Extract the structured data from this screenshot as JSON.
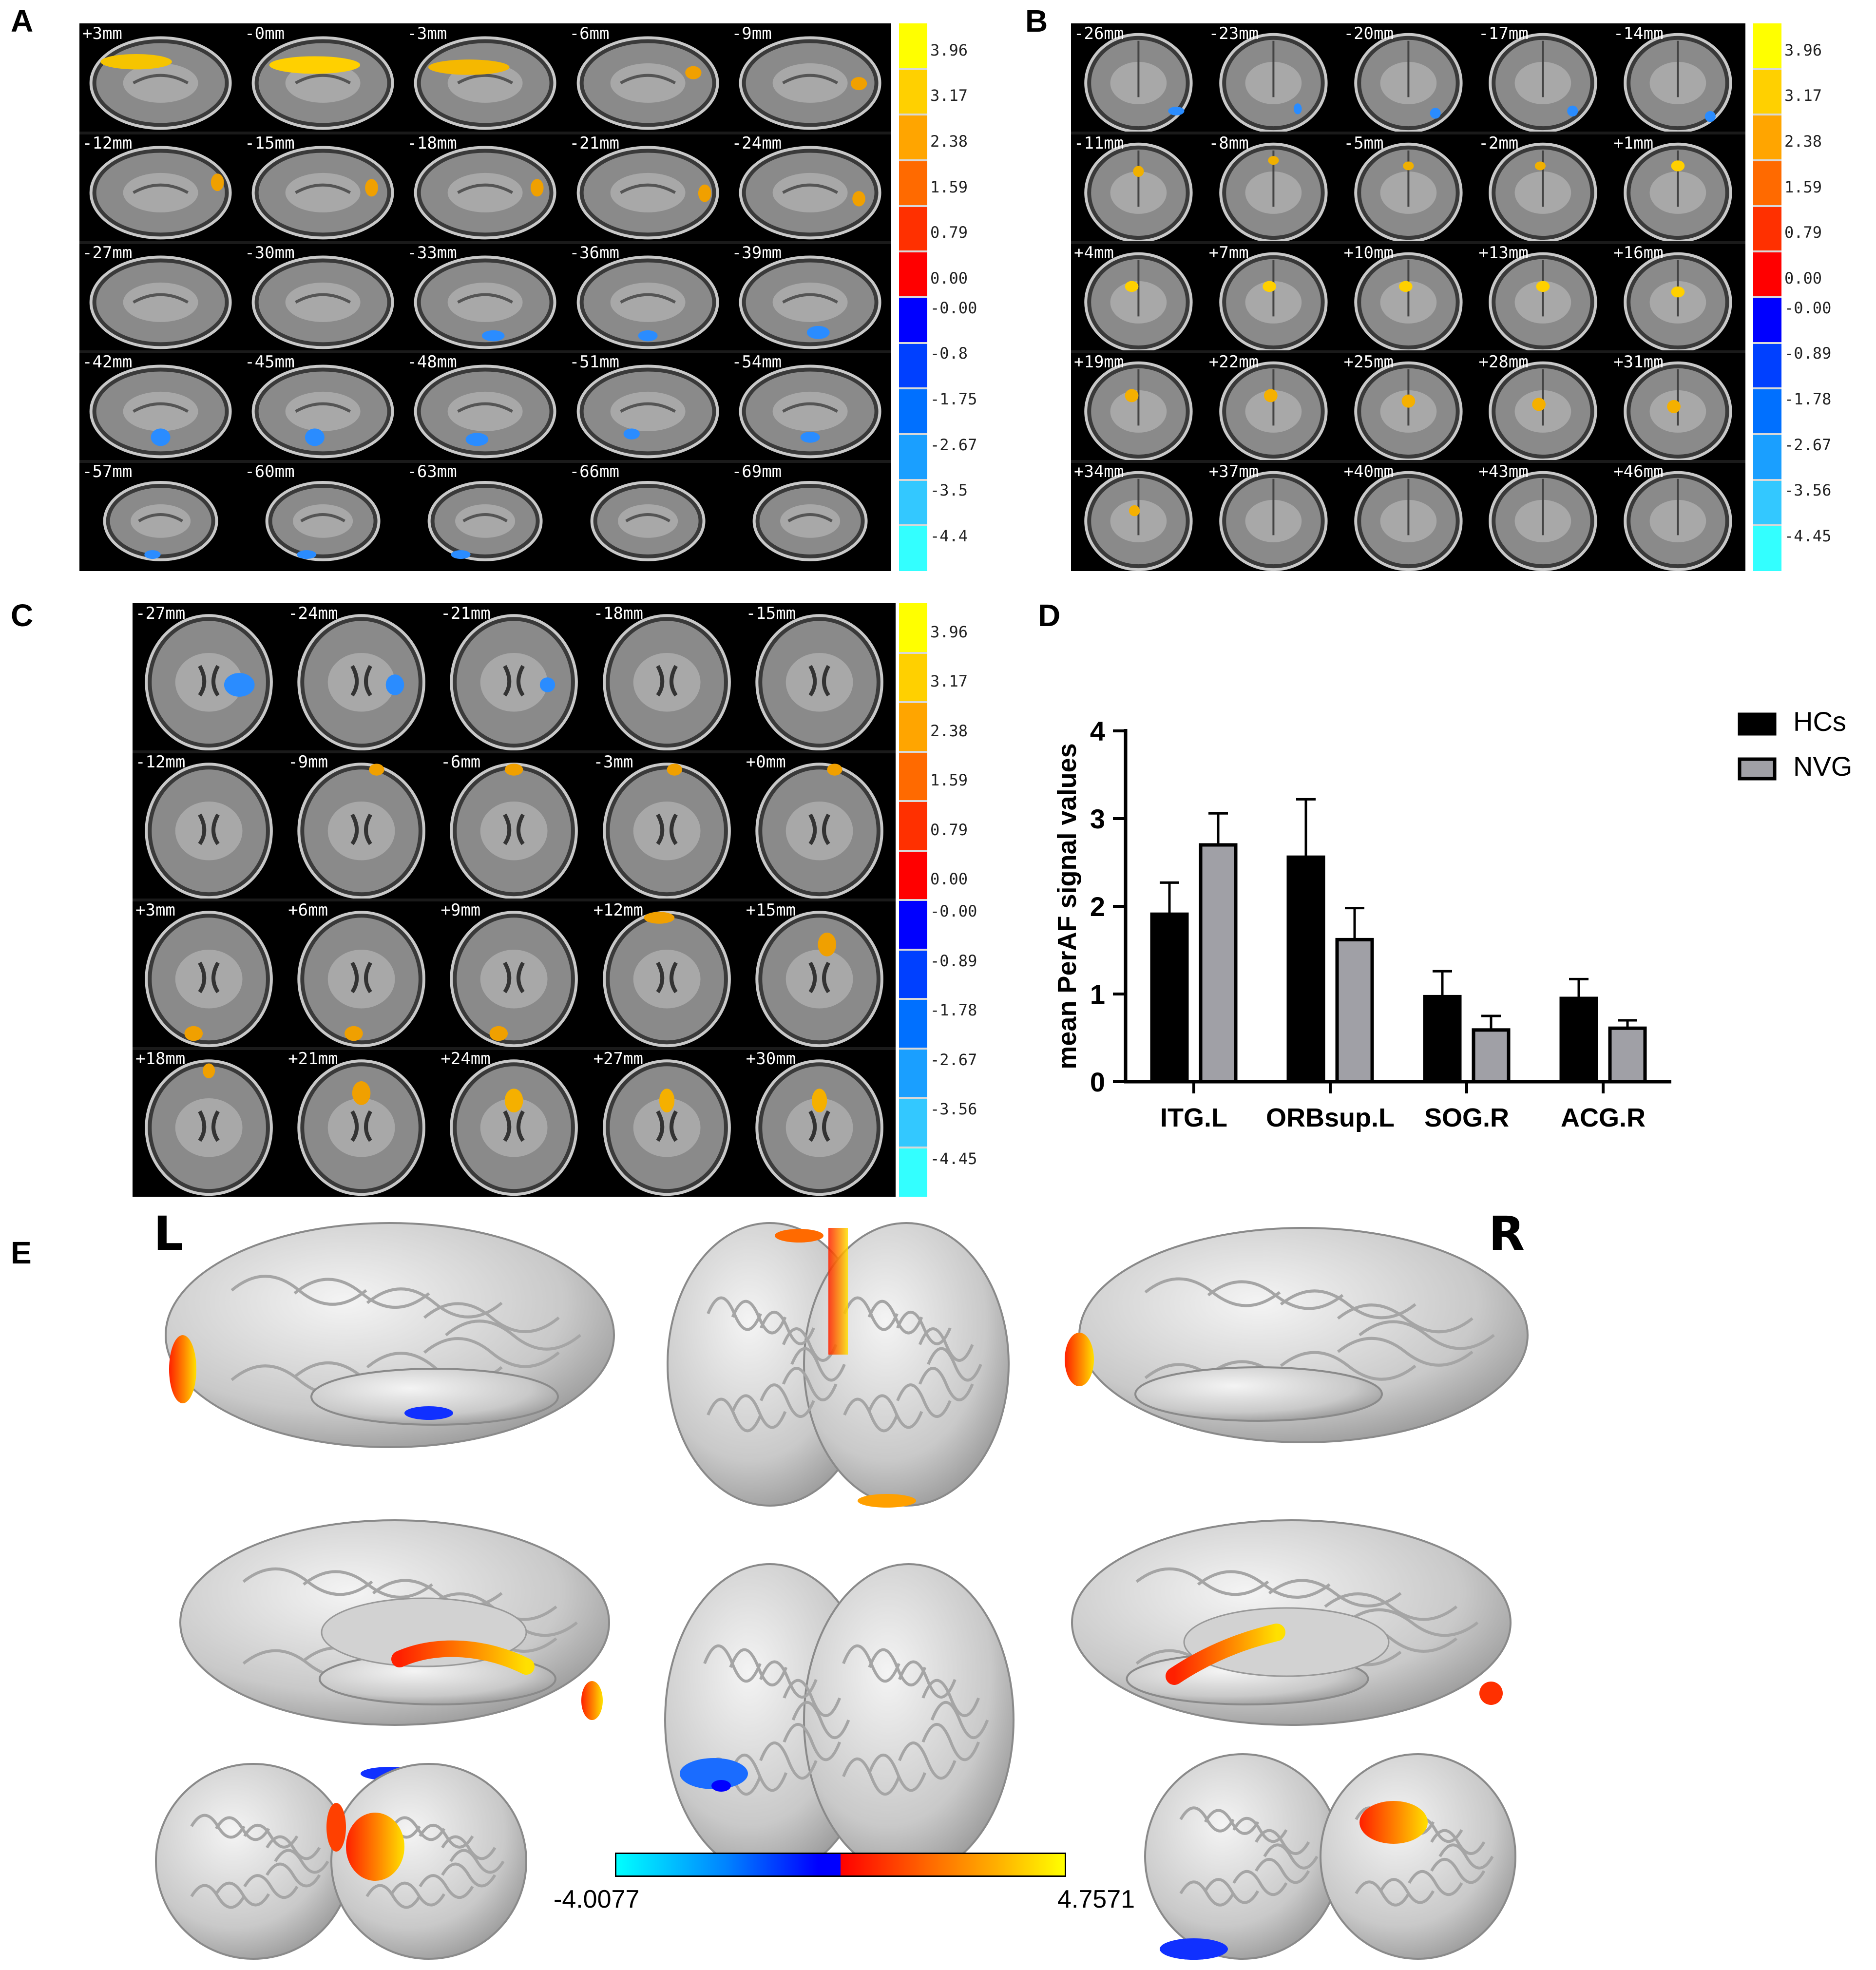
{
  "panels": {
    "A": {
      "label": "A",
      "slices": [
        "+3mm",
        "-0mm",
        "-3mm",
        "-6mm",
        "-9mm",
        "-12mm",
        "-15mm",
        "-18mm",
        "-21mm",
        "-24mm",
        "-27mm",
        "-30mm",
        "-33mm",
        "-36mm",
        "-39mm",
        "-42mm",
        "-45mm",
        "-48mm",
        "-51mm",
        "-54mm",
        "-57mm",
        "-60mm",
        "-63mm",
        "-66mm",
        "-69mm"
      ],
      "colorbar": [
        "3.96",
        "3.17",
        "2.38",
        "1.59",
        "0.79",
        "0.00",
        "-0.00",
        "-0.8",
        "-1.75",
        "-2.67",
        "-3.5",
        "-4.4"
      ]
    },
    "B": {
      "label": "B",
      "slices": [
        "-26mm",
        "-23mm",
        "-20mm",
        "-17mm",
        "-14mm",
        "-11mm",
        "-8mm",
        "-5mm",
        "-2mm",
        "+1mm",
        "+4mm",
        "+7mm",
        "+10mm",
        "+13mm",
        "+16mm",
        "+19mm",
        "+22mm",
        "+25mm",
        "+28mm",
        "+31mm",
        "+34mm",
        "+37mm",
        "+40mm",
        "+43mm",
        "+46mm"
      ],
      "colorbar": [
        "3.96",
        "3.17",
        "2.38",
        "1.59",
        "0.79",
        "0.00",
        "-0.00",
        "-0.89",
        "-1.78",
        "-2.67",
        "-3.56",
        "-4.45"
      ]
    },
    "C": {
      "label": "C",
      "slices": [
        "-27mm",
        "-24mm",
        "-21mm",
        "-18mm",
        "-15mm",
        "-12mm",
        "-9mm",
        "-6mm",
        "-3mm",
        "+0mm",
        "+3mm",
        "+6mm",
        "+9mm",
        "+12mm",
        "+15mm",
        "+18mm",
        "+21mm",
        "+24mm",
        "+27mm",
        "+30mm"
      ],
      "colorbar": [
        "3.96",
        "3.17",
        "2.38",
        "1.59",
        "0.79",
        "0.00",
        "-0.00",
        "-0.89",
        "-1.78",
        "-2.67",
        "-3.56",
        "-4.45"
      ]
    },
    "D": {
      "label": "D"
    },
    "E": {
      "label": "E",
      "left": "L",
      "right": "R",
      "cbar_min": "-4.0077",
      "cbar_max": "4.7571"
    }
  },
  "colors": {
    "hcs": "#000000",
    "nvg": "#a0a0a6",
    "hot_high": "#ffff00",
    "hot_low": "#ff0000",
    "cold_low": "#0000ff",
    "cold_high": "#00ffff"
  },
  "chart_data": {
    "type": "bar",
    "ylabel": "mean PerAF signal values",
    "xlabel": "",
    "ylim": [
      0,
      4
    ],
    "yticks": [
      "0",
      "1",
      "2",
      "3",
      "4"
    ],
    "categories": [
      "ITG.L",
      "ORBsup.L",
      "SOG.R",
      "ACG.R"
    ],
    "series": [
      {
        "name": "HCs",
        "values": [
          1.91,
          2.56,
          0.97,
          0.95
        ],
        "errors": [
          0.36,
          0.66,
          0.29,
          0.22
        ]
      },
      {
        "name": "NVG",
        "values": [
          2.7,
          1.62,
          0.59,
          0.61
        ],
        "errors": [
          0.36,
          0.36,
          0.16,
          0.09
        ]
      }
    ],
    "legend": "top-right",
    "grid": false
  }
}
